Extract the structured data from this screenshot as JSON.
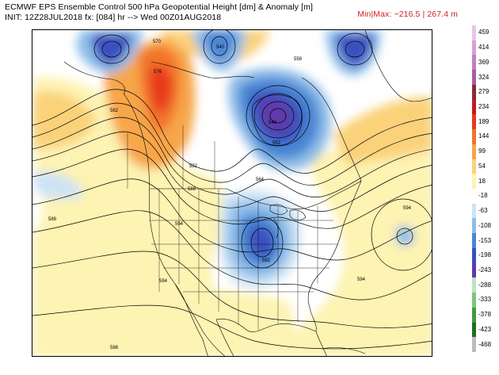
{
  "header": {
    "title": "ECMWF EPS Ensemble Control 500 hPa Geopotential Height [dm] & Anomaly [m]",
    "init": "INIT: 12Z28JUL2018 fx: [084] hr --> Wed 00Z01AUG2018",
    "minmax": "Min|Max: −216.5 | 267.4 m"
  },
  "colorbar": {
    "levels": [
      {
        "label": "459",
        "color": "#e8c6e8"
      },
      {
        "label": "414",
        "color": "#d6a0d6"
      },
      {
        "label": "369",
        "color": "#c47ec4"
      },
      {
        "label": "324",
        "color": "#a85ca8"
      },
      {
        "label": "279",
        "color": "#8a2a3a"
      },
      {
        "label": "234",
        "color": "#c41c1c"
      },
      {
        "label": "189",
        "color": "#e83a1c"
      },
      {
        "label": "144",
        "color": "#f2732a"
      },
      {
        "label": "99",
        "color": "#f7a648"
      },
      {
        "label": "54",
        "color": "#fbd27a"
      },
      {
        "label": "18",
        "color": "#fdf3b2"
      },
      {
        "label": "-18",
        "color": "#ffffff"
      },
      {
        "label": "-63",
        "color": "#cde3f5"
      },
      {
        "label": "-108",
        "color": "#8fbde8"
      },
      {
        "label": "-153",
        "color": "#4a86d4"
      },
      {
        "label": "-198",
        "color": "#3a4fbf"
      },
      {
        "label": "-243",
        "color": "#5e3aaa"
      },
      {
        "label": "-288",
        "color": "#bfe3bf"
      },
      {
        "label": "-333",
        "color": "#7ec47e"
      },
      {
        "label": "-378",
        "color": "#3e9a3e"
      },
      {
        "label": "-423",
        "color": "#1e6e1e"
      },
      {
        "label": "-468",
        "color": "#bdbdbd"
      }
    ]
  },
  "contour_labels": {
    "c570": "570",
    "c576": "576",
    "c582": "582",
    "c588": "588",
    "c594": "594",
    "c558": "558",
    "c552": "552",
    "c564": "564",
    "c546": "546",
    "c540": "540"
  }
}
